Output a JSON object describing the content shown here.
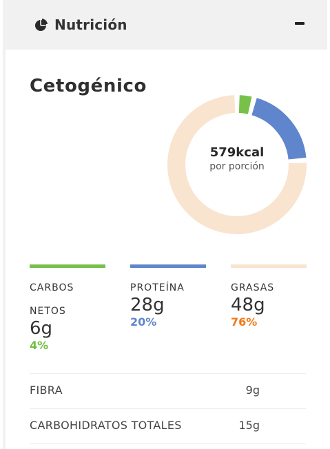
{
  "header": {
    "title": "Nutrición",
    "icon": "pie-chart-icon",
    "collapse_icon": "minus-icon"
  },
  "card": {
    "diet": "Cetogénico",
    "calories": "579kcal",
    "per_portion": "por porción"
  },
  "macros": [
    {
      "label": "CARBOS NETOS",
      "amount": "6g",
      "percent": "4%",
      "color": "#77c14a",
      "pct_color": "#6fbf3d"
    },
    {
      "label": "PROTEÍNA",
      "amount": "28g",
      "percent": "20%",
      "color": "#5f86cc",
      "pct_color": "#5f86cc"
    },
    {
      "label": "GRASAS",
      "amount": "48g",
      "percent": "76%",
      "color": "#f9e4cf",
      "pct_color": "#f07a1a"
    }
  ],
  "donut": {
    "segments": [
      {
        "name": "carbos",
        "fraction": 0.04,
        "color": "#77c14a"
      },
      {
        "name": "proteina",
        "fraction": 0.2,
        "color": "#5f86cc"
      },
      {
        "name": "grasas",
        "fraction": 0.76,
        "color": "#f9e4cf"
      }
    ]
  },
  "rows": [
    {
      "label": "FIBRA",
      "value": "9g"
    },
    {
      "label": "CARBOHIDRATOS TOTALES",
      "value": "15g"
    }
  ]
}
